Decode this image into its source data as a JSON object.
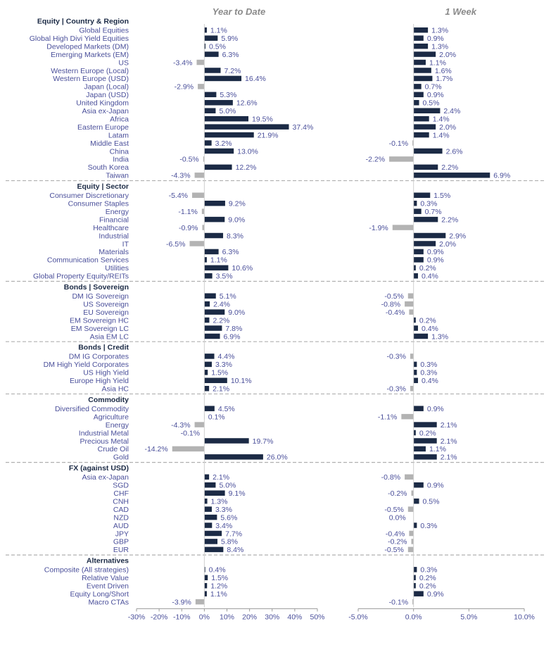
{
  "chart_data": {
    "type": "bar",
    "orientation": "horizontal",
    "panels": [
      {
        "title": "Year to Date",
        "xlim": [
          -30,
          50
        ],
        "ticks": [
          -30,
          -20,
          -10,
          0,
          10,
          20,
          30,
          40,
          50
        ],
        "tick_labels": [
          "-30%",
          "-20%",
          "-10%",
          "0%",
          "10%",
          "20%",
          "30%",
          "40%",
          "50%"
        ]
      },
      {
        "title": "1 Week",
        "xlim": [
          -5,
          10
        ],
        "ticks": [
          -5,
          0,
          5,
          10
        ],
        "tick_labels": [
          "-5.0%",
          "0.0%",
          "5.0%",
          "10.0%"
        ]
      }
    ],
    "colors": {
      "positive": "#1b2a45",
      "negative": "#b3b3b3",
      "separator": "#b0b0b0"
    },
    "sections": [
      {
        "name": "Equity | Country & Region",
        "rows": [
          {
            "label": "Global Equities",
            "ytd": 1.1,
            "ytd_label": "1.1%",
            "wk": 1.3,
            "wk_label": "1.3%"
          },
          {
            "label": "Global High Divi Yield Equities",
            "ytd": 5.9,
            "ytd_label": "5.9%",
            "wk": 0.9,
            "wk_label": "0.9%"
          },
          {
            "label": "Developed Markets (DM)",
            "ytd": 0.5,
            "ytd_label": "0.5%",
            "wk": 1.3,
            "wk_label": "1.3%"
          },
          {
            "label": "Emerging Markets (EM)",
            "ytd": 6.3,
            "ytd_label": "6.3%",
            "wk": 2.0,
            "wk_label": "2.0%"
          },
          {
            "label": "US",
            "ytd": -3.4,
            "ytd_label": "-3.4%",
            "wk": 1.1,
            "wk_label": "1.1%"
          },
          {
            "label": "Western Europe (Local)",
            "ytd": 7.2,
            "ytd_label": "7.2%",
            "wk": 1.6,
            "wk_label": "1.6%"
          },
          {
            "label": "Western Europe (USD)",
            "ytd": 16.4,
            "ytd_label": "16.4%",
            "wk": 1.7,
            "wk_label": "1.7%"
          },
          {
            "label": "Japan (Local)",
            "ytd": -2.9,
            "ytd_label": "-2.9%",
            "wk": 0.7,
            "wk_label": "0.7%"
          },
          {
            "label": "Japan (USD)",
            "ytd": 5.3,
            "ytd_label": "5.3%",
            "wk": 0.9,
            "wk_label": "0.9%"
          },
          {
            "label": "United Kingdom",
            "ytd": 12.6,
            "ytd_label": "12.6%",
            "wk": 0.5,
            "wk_label": "0.5%"
          },
          {
            "label": "Asia ex-Japan",
            "ytd": 5.0,
            "ytd_label": "5.0%",
            "wk": 2.4,
            "wk_label": "2.4%"
          },
          {
            "label": "Africa",
            "ytd": 19.5,
            "ytd_label": "19.5%",
            "wk": 1.4,
            "wk_label": "1.4%"
          },
          {
            "label": "Eastern Europe",
            "ytd": 37.4,
            "ytd_label": "37.4%",
            "wk": 2.0,
            "wk_label": "2.0%"
          },
          {
            "label": "Latam",
            "ytd": 21.9,
            "ytd_label": "21.9%",
            "wk": 1.4,
            "wk_label": "1.4%"
          },
          {
            "label": "Middle East",
            "ytd": 3.2,
            "ytd_label": "3.2%",
            "wk": -0.1,
            "wk_label": "-0.1%"
          },
          {
            "label": "China",
            "ytd": 13.0,
            "ytd_label": "13.0%",
            "wk": 2.6,
            "wk_label": "2.6%"
          },
          {
            "label": "India",
            "ytd": -0.5,
            "ytd_label": "-0.5%",
            "wk": -2.2,
            "wk_label": "-2.2%"
          },
          {
            "label": "South Korea",
            "ytd": 12.2,
            "ytd_label": "12.2%",
            "wk": 2.2,
            "wk_label": "2.2%"
          },
          {
            "label": "Taiwan",
            "ytd": -4.3,
            "ytd_label": "-4.3%",
            "wk": 6.9,
            "wk_label": "6.9%"
          }
        ]
      },
      {
        "name": "Equity | Sector",
        "rows": [
          {
            "label": "Consumer Discretionary",
            "ytd": -5.4,
            "ytd_label": "-5.4%",
            "wk": 1.5,
            "wk_label": "1.5%"
          },
          {
            "label": "Consumer Staples",
            "ytd": 9.2,
            "ytd_label": "9.2%",
            "wk": 0.3,
            "wk_label": "0.3%"
          },
          {
            "label": "Energy",
            "ytd": -1.1,
            "ytd_label": "-1.1%",
            "wk": 0.7,
            "wk_label": "0.7%"
          },
          {
            "label": "Financial",
            "ytd": 9.0,
            "ytd_label": "9.0%",
            "wk": 2.2,
            "wk_label": "2.2%"
          },
          {
            "label": "Healthcare",
            "ytd": -0.9,
            "ytd_label": "-0.9%",
            "wk": -1.9,
            "wk_label": "-1.9%"
          },
          {
            "label": "Industrial",
            "ytd": 8.3,
            "ytd_label": "8.3%",
            "wk": 2.9,
            "wk_label": "2.9%"
          },
          {
            "label": "IT",
            "ytd": -6.5,
            "ytd_label": "-6.5%",
            "wk": 2.0,
            "wk_label": "2.0%"
          },
          {
            "label": "Materials",
            "ytd": 6.3,
            "ytd_label": "6.3%",
            "wk": 0.9,
            "wk_label": "0.9%"
          },
          {
            "label": "Communication Services",
            "ytd": 1.1,
            "ytd_label": "1.1%",
            "wk": 0.9,
            "wk_label": "0.9%"
          },
          {
            "label": "Utilities",
            "ytd": 10.6,
            "ytd_label": "10.6%",
            "wk": 0.2,
            "wk_label": "0.2%"
          },
          {
            "label": "Global Property Equity/REITs",
            "ytd": 3.5,
            "ytd_label": "3.5%",
            "wk": 0.4,
            "wk_label": "0.4%"
          }
        ]
      },
      {
        "name": "Bonds | Sovereign",
        "rows": [
          {
            "label": "DM IG Sovereign",
            "ytd": 5.1,
            "ytd_label": "5.1%",
            "wk": -0.5,
            "wk_label": "-0.5%"
          },
          {
            "label": "US Sovereign",
            "ytd": 2.4,
            "ytd_label": "2.4%",
            "wk": -0.8,
            "wk_label": "-0.8%"
          },
          {
            "label": "EU Sovereign",
            "ytd": 9.0,
            "ytd_label": "9.0%",
            "wk": -0.4,
            "wk_label": "-0.4%"
          },
          {
            "label": "EM Sovereign HC",
            "ytd": 2.2,
            "ytd_label": "2.2%",
            "wk": 0.2,
            "wk_label": "0.2%"
          },
          {
            "label": "EM Sovereign LC",
            "ytd": 7.8,
            "ytd_label": "7.8%",
            "wk": 0.4,
            "wk_label": "0.4%"
          },
          {
            "label": "Asia EM LC",
            "ytd": 6.9,
            "ytd_label": "6.9%",
            "wk": 1.3,
            "wk_label": "1.3%"
          }
        ]
      },
      {
        "name": "Bonds | Credit",
        "rows": [
          {
            "label": "DM IG Corporates",
            "ytd": 4.4,
            "ytd_label": "4.4%",
            "wk": -0.3,
            "wk_label": "-0.3%"
          },
          {
            "label": "DM High Yield Corporates",
            "ytd": 3.3,
            "ytd_label": "3.3%",
            "wk": 0.3,
            "wk_label": "0.3%"
          },
          {
            "label": "US High Yield",
            "ytd": 1.5,
            "ytd_label": "1.5%",
            "wk": 0.3,
            "wk_label": "0.3%"
          },
          {
            "label": "Europe High Yield",
            "ytd": 10.1,
            "ytd_label": "10.1%",
            "wk": 0.4,
            "wk_label": "0.4%"
          },
          {
            "label": "Asia HC",
            "ytd": 2.1,
            "ytd_label": "2.1%",
            "wk": -0.3,
            "wk_label": "-0.3%"
          }
        ]
      },
      {
        "name": "Commodity",
        "rows": [
          {
            "label": "Diversified Commodity",
            "ytd": 4.5,
            "ytd_label": "4.5%",
            "wk": 0.9,
            "wk_label": "0.9%"
          },
          {
            "label": "Agriculture",
            "ytd": 0.1,
            "ytd_label": "0.1%",
            "wk": -1.1,
            "wk_label": "-1.1%"
          },
          {
            "label": "Energy",
            "ytd": -4.3,
            "ytd_label": "-4.3%",
            "wk": 2.1,
            "wk_label": "2.1%"
          },
          {
            "label": "Industrial Metal",
            "ytd": -0.1,
            "ytd_label": "-0.1%",
            "wk": 0.2,
            "wk_label": "0.2%"
          },
          {
            "label": "Precious Metal",
            "ytd": 19.7,
            "ytd_label": "19.7%",
            "wk": 2.1,
            "wk_label": "2.1%"
          },
          {
            "label": "Crude Oil",
            "ytd": -14.2,
            "ytd_label": "-14.2%",
            "wk": 1.1,
            "wk_label": "1.1%"
          },
          {
            "label": "Gold",
            "ytd": 26.0,
            "ytd_label": "26.0%",
            "wk": 2.1,
            "wk_label": "2.1%"
          }
        ]
      },
      {
        "name": "FX (against USD)",
        "rows": [
          {
            "label": "Asia ex-Japan",
            "ytd": 2.1,
            "ytd_label": "2.1%",
            "wk": -0.8,
            "wk_label": "-0.8%"
          },
          {
            "label": "SGD",
            "ytd": 5.0,
            "ytd_label": "5.0%",
            "wk": 0.9,
            "wk_label": "0.9%"
          },
          {
            "label": "CHF",
            "ytd": 9.1,
            "ytd_label": "9.1%",
            "wk": -0.2,
            "wk_label": "-0.2%"
          },
          {
            "label": "CNH",
            "ytd": 1.3,
            "ytd_label": "1.3%",
            "wk": 0.5,
            "wk_label": "0.5%"
          },
          {
            "label": "CAD",
            "ytd": 3.3,
            "ytd_label": "3.3%",
            "wk": -0.5,
            "wk_label": "-0.5%"
          },
          {
            "label": "NZD",
            "ytd": 5.6,
            "ytd_label": "5.6%",
            "wk": 0.0,
            "wk_label": "0.0%"
          },
          {
            "label": "AUD",
            "ytd": 3.4,
            "ytd_label": "3.4%",
            "wk": 0.3,
            "wk_label": "0.3%"
          },
          {
            "label": "JPY",
            "ytd": 7.7,
            "ytd_label": "7.7%",
            "wk": -0.4,
            "wk_label": "-0.4%"
          },
          {
            "label": "GBP",
            "ytd": 5.8,
            "ytd_label": "5.8%",
            "wk": -0.2,
            "wk_label": "-0.2%"
          },
          {
            "label": "EUR",
            "ytd": 8.4,
            "ytd_label": "8.4%",
            "wk": -0.5,
            "wk_label": "-0.5%"
          }
        ]
      },
      {
        "name": "Alternatives",
        "rows": [
          {
            "label": "Composite (All strategies)",
            "ytd": 0.4,
            "ytd_label": "0.4%",
            "wk": 0.3,
            "wk_label": "0.3%"
          },
          {
            "label": "Relative Value",
            "ytd": 1.5,
            "ytd_label": "1.5%",
            "wk": 0.2,
            "wk_label": "0.2%"
          },
          {
            "label": "Event Driven",
            "ytd": 1.2,
            "ytd_label": "1.2%",
            "wk": 0.2,
            "wk_label": "0.2%"
          },
          {
            "label": "Equity Long/Short",
            "ytd": 1.1,
            "ytd_label": "1.1%",
            "wk": 0.9,
            "wk_label": "0.9%"
          },
          {
            "label": "Macro CTAs",
            "ytd": -3.9,
            "ytd_label": "-3.9%",
            "wk": -0.1,
            "wk_label": "-0.1%"
          }
        ]
      }
    ]
  }
}
